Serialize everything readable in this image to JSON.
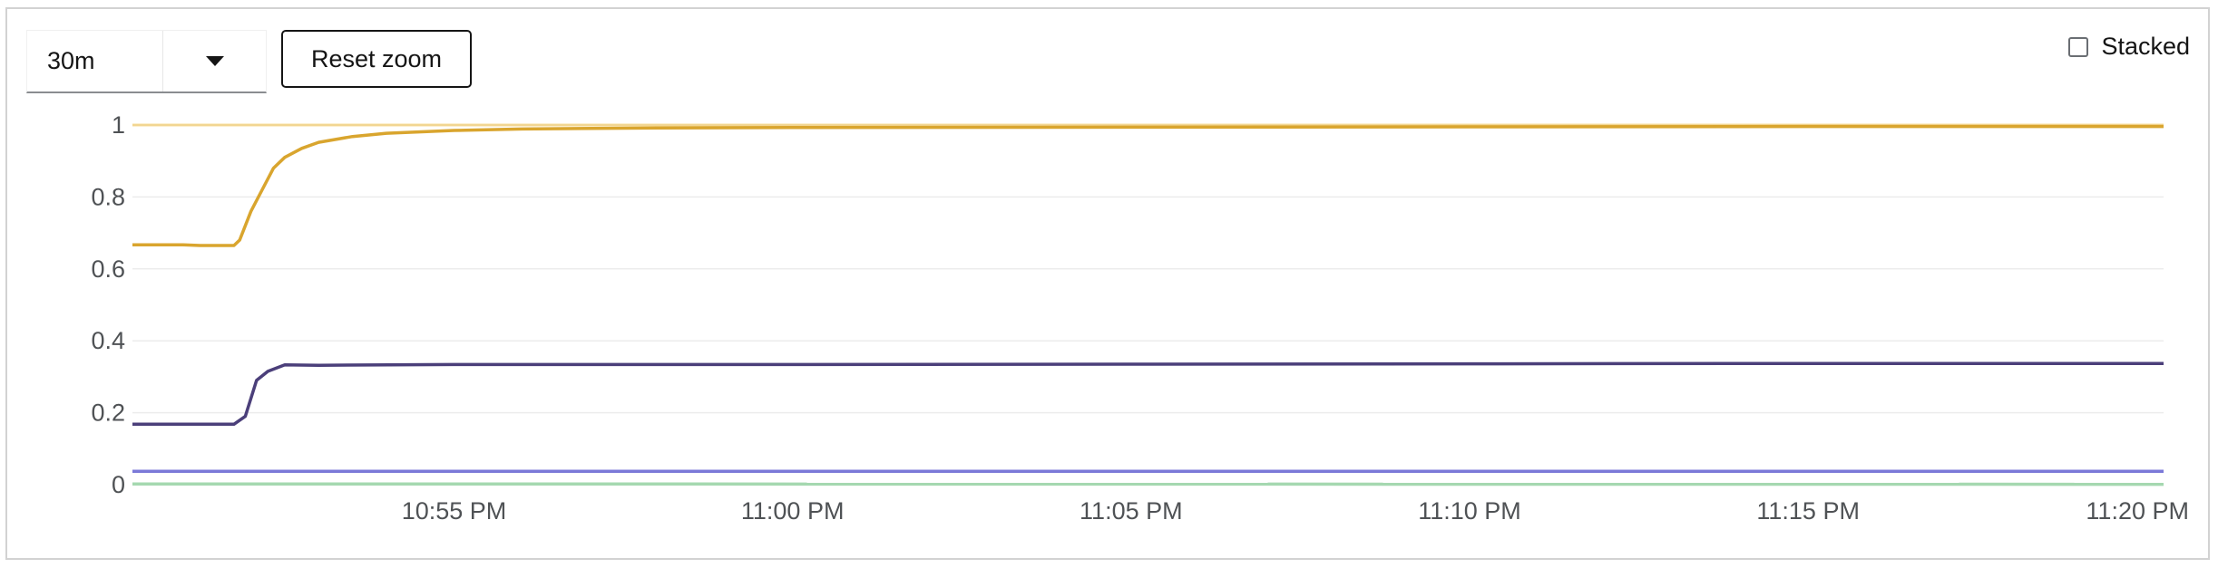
{
  "controls": {
    "timespan_value": "30m",
    "reset_zoom_label": "Reset zoom",
    "stacked_label": "Stacked",
    "stacked_checked": false,
    "dropdown_icon": "caret-down-icon"
  },
  "chart_data": {
    "type": "line",
    "title": "",
    "xlabel": "",
    "ylabel": "",
    "ylim": [
      0,
      1
    ],
    "xlim": [
      "10:50:15 PM",
      "11:20:15 PM"
    ],
    "grid": true,
    "y_ticks": [
      "0",
      "0.2",
      "0.4",
      "0.6",
      "0.8",
      "1"
    ],
    "x_ticks": [
      "10:55 PM",
      "11:00 PM",
      "11:05 PM",
      "11:10 PM",
      "11:15 PM",
      "11:20 PM"
    ],
    "series": [
      {
        "color": "#f4c145",
        "points": [
          [
            "10:50:15 PM",
            1.0
          ],
          [
            "11:20:15 PM",
            1.0
          ]
        ],
        "line": "light"
      },
      {
        "color": "#d9a52e",
        "points": [
          [
            "10:50:15 PM",
            0.667
          ],
          [
            "10:51:00 PM",
            0.667
          ],
          [
            "10:51:15 PM",
            0.665
          ],
          [
            "10:51:45 PM",
            0.665
          ],
          [
            "10:51:50 PM",
            0.68
          ],
          [
            "10:52:00 PM",
            0.76
          ],
          [
            "10:52:10 PM",
            0.82
          ],
          [
            "10:52:20 PM",
            0.88
          ],
          [
            "10:52:30 PM",
            0.91
          ],
          [
            "10:52:45 PM",
            0.935
          ],
          [
            "10:53:00 PM",
            0.952
          ],
          [
            "10:53:30 PM",
            0.968
          ],
          [
            "10:54:00 PM",
            0.977
          ],
          [
            "10:55:00 PM",
            0.985
          ],
          [
            "10:56:00 PM",
            0.989
          ],
          [
            "10:58:00 PM",
            0.992
          ],
          [
            "11:00:00 PM",
            0.993
          ],
          [
            "11:05:00 PM",
            0.994
          ],
          [
            "11:10:00 PM",
            0.995
          ],
          [
            "11:15:00 PM",
            0.996
          ],
          [
            "11:20:15 PM",
            0.996
          ]
        ]
      },
      {
        "color": "#4b3f7a",
        "points": [
          [
            "10:50:15 PM",
            0.168
          ],
          [
            "10:51:00 PM",
            0.168
          ],
          [
            "10:51:45 PM",
            0.168
          ],
          [
            "10:51:55 PM",
            0.19
          ],
          [
            "10:52:05 PM",
            0.29
          ],
          [
            "10:52:15 PM",
            0.315
          ],
          [
            "10:52:30 PM",
            0.333
          ],
          [
            "10:53:00 PM",
            0.332
          ],
          [
            "10:55:00 PM",
            0.334
          ],
          [
            "11:00:00 PM",
            0.334
          ],
          [
            "11:05:00 PM",
            0.335
          ],
          [
            "11:10:00 PM",
            0.336
          ],
          [
            "11:15:00 PM",
            0.337
          ],
          [
            "11:20:15 PM",
            0.337
          ]
        ]
      },
      {
        "color": "#7b79d8",
        "points": [
          [
            "10:50:15 PM",
            0.037
          ],
          [
            "11:20:15 PM",
            0.037
          ]
        ]
      },
      {
        "color": "#a5d8b0",
        "points": [
          [
            "10:50:15 PM",
            0.002
          ],
          [
            "11:20:15 PM",
            0.001
          ]
        ]
      }
    ]
  }
}
